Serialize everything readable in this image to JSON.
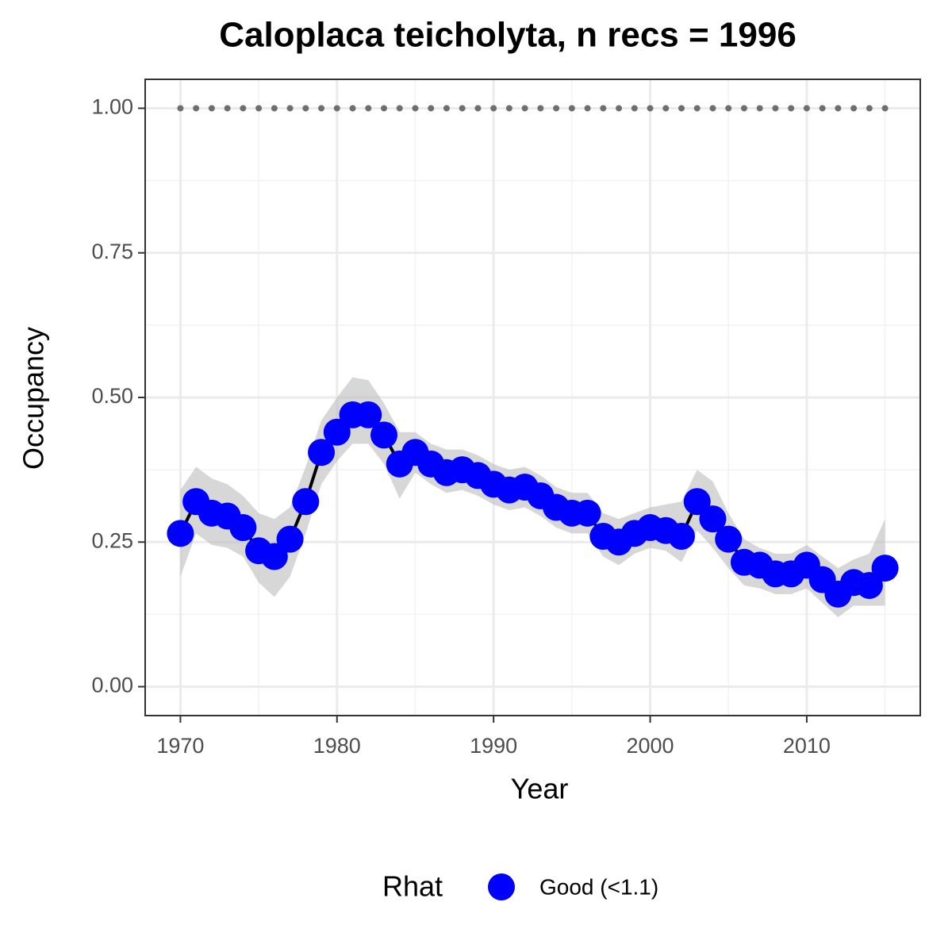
{
  "chart_data": {
    "type": "line",
    "title": "Caloplaca teicholyta, n recs = 1996",
    "xlabel": "Year",
    "ylabel": "Occupancy",
    "x": [
      1970,
      1971,
      1972,
      1973,
      1974,
      1975,
      1976,
      1977,
      1978,
      1979,
      1980,
      1981,
      1982,
      1983,
      1984,
      1985,
      1986,
      1987,
      1988,
      1989,
      1990,
      1991,
      1992,
      1993,
      1994,
      1995,
      1996,
      1997,
      1998,
      1999,
      2000,
      2001,
      2002,
      2003,
      2004,
      2005,
      2006,
      2007,
      2008,
      2009,
      2010,
      2011,
      2012,
      2013,
      2014,
      2015
    ],
    "series": [
      {
        "name": "Good (<1.1)",
        "color": "#0000ff",
        "line_color": "#000000",
        "values": [
          0.265,
          0.32,
          0.3,
          0.295,
          0.275,
          0.235,
          0.225,
          0.255,
          0.32,
          0.405,
          0.44,
          0.47,
          0.47,
          0.435,
          0.385,
          0.405,
          0.385,
          0.37,
          0.375,
          0.365,
          0.35,
          0.34,
          0.345,
          0.33,
          0.31,
          0.3,
          0.3,
          0.26,
          0.25,
          0.265,
          0.275,
          0.27,
          0.26,
          0.32,
          0.29,
          0.255,
          0.215,
          0.21,
          0.195,
          0.195,
          0.21,
          0.185,
          0.16,
          0.18,
          0.175,
          0.205
        ],
        "upper": [
          0.34,
          0.38,
          0.36,
          0.35,
          0.33,
          0.3,
          0.29,
          0.31,
          0.38,
          0.46,
          0.5,
          0.535,
          0.53,
          0.49,
          0.44,
          0.44,
          0.42,
          0.41,
          0.41,
          0.4,
          0.385,
          0.375,
          0.38,
          0.365,
          0.345,
          0.335,
          0.335,
          0.3,
          0.29,
          0.3,
          0.31,
          0.315,
          0.32,
          0.375,
          0.355,
          0.3,
          0.255,
          0.24,
          0.23,
          0.23,
          0.245,
          0.225,
          0.205,
          0.22,
          0.23,
          0.29
        ],
        "lower": [
          0.19,
          0.265,
          0.245,
          0.24,
          0.225,
          0.18,
          0.155,
          0.19,
          0.265,
          0.35,
          0.39,
          0.42,
          0.42,
          0.385,
          0.325,
          0.37,
          0.35,
          0.335,
          0.34,
          0.33,
          0.315,
          0.305,
          0.31,
          0.295,
          0.275,
          0.265,
          0.265,
          0.225,
          0.21,
          0.23,
          0.24,
          0.235,
          0.215,
          0.27,
          0.24,
          0.205,
          0.175,
          0.17,
          0.16,
          0.16,
          0.17,
          0.145,
          0.12,
          0.14,
          0.14,
          0.14
        ]
      }
    ],
    "reference": {
      "color": "#6e6e6e",
      "values": [
        1,
        1,
        1,
        1,
        1,
        1,
        1,
        1,
        1,
        1,
        1,
        1,
        1,
        1,
        1,
        1,
        1,
        1,
        1,
        1,
        1,
        1,
        1,
        1,
        1,
        1,
        1,
        1,
        1,
        1,
        1,
        1,
        1,
        1,
        1,
        1,
        1,
        1,
        1,
        1,
        1,
        1,
        1,
        1,
        1,
        1
      ]
    },
    "xlim": [
      1967.75,
      2017.25
    ],
    "xticks": [
      1970,
      1980,
      1990,
      2000,
      2010
    ],
    "ylim": [
      -0.05,
      1.05
    ],
    "yticks": [
      {
        "value": 0,
        "label": "0.00"
      },
      {
        "value": 0.25,
        "label": "0.25"
      },
      {
        "value": 0.5,
        "label": "0.50"
      },
      {
        "value": 0.75,
        "label": "0.75"
      },
      {
        "value": 1,
        "label": "1.00"
      }
    ],
    "grid": true,
    "legend_title": "Rhat",
    "legend_position": "bottom"
  }
}
